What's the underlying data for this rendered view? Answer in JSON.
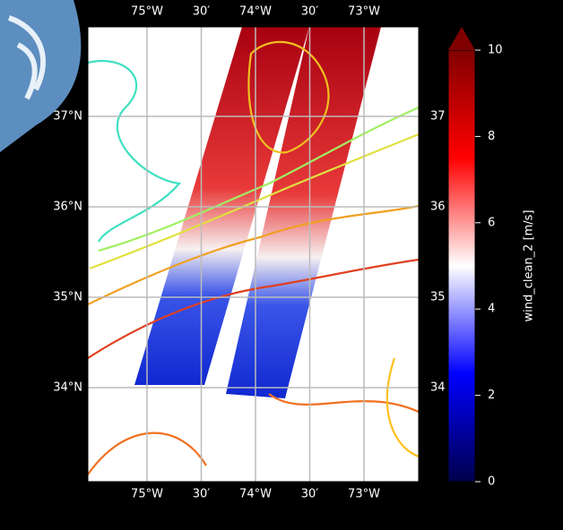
{
  "map": {
    "lon_labels": [
      "75°W",
      "30′",
      "74°W",
      "30′",
      "73°W"
    ],
    "lat_labels": [
      "37°N",
      "36°N",
      "35°N",
      "34°N"
    ],
    "right_lat_labels": [
      "37",
      "36",
      "35",
      "34"
    ]
  },
  "colorbar": {
    "label": "wind_clean_2 [m/s]",
    "lim": [
      0,
      10
    ],
    "ticks": [
      0,
      2,
      4,
      6,
      8,
      10
    ]
  }
}
